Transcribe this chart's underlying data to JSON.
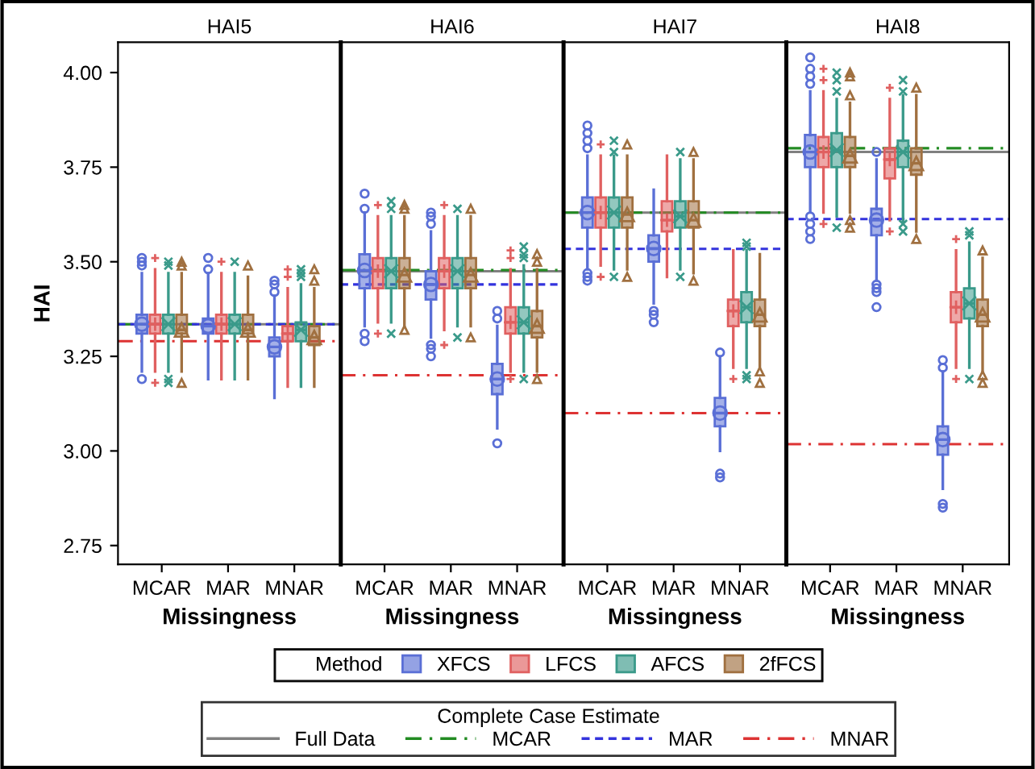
{
  "chart_data": [
    {
      "type": "box",
      "title": "HAI5",
      "xlabel": "Missingness",
      "ylabel": "HAI",
      "categories": [
        "MCAR",
        "MAR",
        "MNAR"
      ],
      "ylim": [
        2.7,
        4.08
      ],
      "yticks": [
        {
          "value": 2.75,
          "label": "2.75"
        },
        {
          "value": 3.0,
          "label": "3.00"
        },
        {
          "value": 3.25,
          "label": "3.25"
        },
        {
          "value": 3.5,
          "label": "3.50"
        },
        {
          "value": 3.75,
          "label": "3.75"
        },
        {
          "value": 4.0,
          "label": "4.00"
        }
      ],
      "legend": "bottom",
      "legend_title": "Method",
      "annotations": [
        "Complete Case Estimate"
      ],
      "ref_lines": [
        {
          "axis": "y",
          "value": 3.335,
          "label": "Full Data",
          "color": "#808080",
          "line_style": "solid"
        },
        {
          "axis": "y",
          "value": 3.335,
          "label": "MCAR",
          "color": "#228b22",
          "line_style": "dashdot"
        },
        {
          "axis": "y",
          "value": 3.335,
          "label": "MAR",
          "color": "#3333dd",
          "line_style": "dashed"
        },
        {
          "axis": "y",
          "value": 3.29,
          "label": "MNAR",
          "color": "#dd3333",
          "line_style": "dashdot"
        }
      ],
      "series": [
        {
          "name": "XFCS",
          "color": "#5a6fd6",
          "marker": "circle",
          "boxes": [
            {
              "low": 3.21,
              "q1": 3.31,
              "median": 3.335,
              "q3": 3.36,
              "high": 3.47,
              "mean": 3.335,
              "outliers": [
                3.19,
                3.49,
                3.5,
                3.51
              ]
            },
            {
              "low": 3.19,
              "q1": 3.31,
              "median": 3.33,
              "q3": 3.35,
              "high": 3.47,
              "mean": 3.33,
              "outliers": [
                3.48,
                3.51
              ]
            },
            {
              "low": 3.14,
              "q1": 3.25,
              "median": 3.275,
              "q3": 3.3,
              "high": 3.41,
              "mean": 3.275,
              "outliers": [
                3.42,
                3.44,
                3.45
              ]
            }
          ]
        },
        {
          "name": "LFCS",
          "color": "#e06060",
          "marker": "plus",
          "boxes": [
            {
              "low": 3.21,
              "q1": 3.31,
              "median": 3.335,
              "q3": 3.36,
              "high": 3.48,
              "mean": 3.335,
              "outliers": [
                3.18,
                3.51
              ]
            },
            {
              "low": 3.19,
              "q1": 3.31,
              "median": 3.335,
              "q3": 3.36,
              "high": 3.47,
              "mean": 3.335,
              "outliers": [
                3.5
              ]
            },
            {
              "low": 3.17,
              "q1": 3.29,
              "median": 3.31,
              "q3": 3.33,
              "high": 3.43,
              "mean": 3.31,
              "outliers": [
                3.46,
                3.48
              ]
            }
          ]
        },
        {
          "name": "AFCS",
          "color": "#3a9a8a",
          "marker": "cross",
          "boxes": [
            {
              "low": 3.21,
              "q1": 3.31,
              "median": 3.335,
              "q3": 3.36,
              "high": 3.47,
              "mean": 3.335,
              "outliers": [
                3.18,
                3.19,
                3.49,
                3.5
              ]
            },
            {
              "low": 3.19,
              "q1": 3.31,
              "median": 3.335,
              "q3": 3.36,
              "high": 3.47,
              "mean": 3.335,
              "outliers": [
                3.5
              ]
            },
            {
              "low": 3.17,
              "q1": 3.29,
              "median": 3.32,
              "q3": 3.34,
              "high": 3.44,
              "mean": 3.32,
              "outliers": [
                3.46,
                3.47,
                3.48
              ]
            }
          ]
        },
        {
          "name": "2fFCS",
          "color": "#a07040",
          "marker": "triangle",
          "boxes": [
            {
              "low": 3.21,
              "q1": 3.31,
              "median": 3.32,
              "q3": 3.36,
              "high": 3.47,
              "mean": 3.32,
              "outliers": [
                3.18,
                3.49,
                3.5
              ]
            },
            {
              "low": 3.19,
              "q1": 3.31,
              "median": 3.32,
              "q3": 3.36,
              "high": 3.46,
              "mean": 3.32,
              "outliers": [
                3.49
              ]
            },
            {
              "low": 3.17,
              "q1": 3.28,
              "median": 3.3,
              "q3": 3.33,
              "high": 3.43,
              "mean": 3.3,
              "outliers": [
                3.45,
                3.48
              ]
            }
          ]
        }
      ]
    },
    {
      "type": "box",
      "title": "HAI6",
      "xlabel": "Missingness",
      "categories": [
        "MCAR",
        "MAR",
        "MNAR"
      ],
      "ylim": [
        2.7,
        4.08
      ],
      "tick_labels": "x",
      "ref_lines": [
        {
          "axis": "y",
          "value": 3.475,
          "color": "#808080",
          "line_style": "solid"
        },
        {
          "axis": "y",
          "value": 3.478,
          "color": "#228b22",
          "line_style": "dashdot"
        },
        {
          "axis": "y",
          "value": 3.44,
          "color": "#3333dd",
          "line_style": "dashed"
        },
        {
          "axis": "y",
          "value": 3.2,
          "color": "#dd3333",
          "line_style": "dashdot"
        }
      ],
      "series": [
        {
          "color": "#5a6fd6",
          "marker": "circle",
          "boxes": [
            {
              "low": 3.33,
              "q1": 3.43,
              "median": 3.477,
              "q3": 3.52,
              "high": 3.63,
              "mean": 3.477,
              "outliers": [
                3.29,
                3.31,
                3.64,
                3.68
              ]
            },
            {
              "low": 3.3,
              "q1": 3.4,
              "median": 3.44,
              "q3": 3.475,
              "high": 3.58,
              "mean": 3.44,
              "outliers": [
                3.25,
                3.27,
                3.28,
                3.6,
                3.62,
                3.63
              ]
            },
            {
              "low": 3.06,
              "q1": 3.15,
              "median": 3.19,
              "q3": 3.23,
              "high": 3.33,
              "mean": 3.19,
              "outliers": [
                3.02,
                3.35,
                3.37
              ]
            }
          ]
        },
        {
          "color": "#e06060",
          "marker": "plus",
          "boxes": [
            {
              "low": 3.34,
              "q1": 3.43,
              "median": 3.475,
              "q3": 3.51,
              "high": 3.62,
              "mean": 3.475,
              "outliers": [
                3.31,
                3.65
              ]
            },
            {
              "low": 3.32,
              "q1": 3.43,
              "median": 3.475,
              "q3": 3.51,
              "high": 3.62,
              "mean": 3.475,
              "outliers": [
                3.28,
                3.65
              ]
            },
            {
              "low": 3.21,
              "q1": 3.31,
              "median": 3.34,
              "q3": 3.38,
              "high": 3.48,
              "mean": 3.34,
              "outliers": [
                3.19,
                3.51,
                3.53
              ]
            }
          ]
        },
        {
          "color": "#3a9a8a",
          "marker": "cross",
          "boxes": [
            {
              "low": 3.34,
              "q1": 3.43,
              "median": 3.475,
              "q3": 3.51,
              "high": 3.62,
              "mean": 3.475,
              "outliers": [
                3.31,
                3.64,
                3.66
              ]
            },
            {
              "low": 3.33,
              "q1": 3.43,
              "median": 3.475,
              "q3": 3.51,
              "high": 3.62,
              "mean": 3.475,
              "outliers": [
                3.3,
                3.64
              ]
            },
            {
              "low": 3.21,
              "q1": 3.31,
              "median": 3.34,
              "q3": 3.38,
              "high": 3.49,
              "mean": 3.34,
              "outliers": [
                3.19,
                3.51,
                3.52,
                3.54
              ]
            }
          ]
        },
        {
          "color": "#a07040",
          "marker": "triangle",
          "boxes": [
            {
              "low": 3.33,
              "q1": 3.43,
              "median": 3.465,
              "q3": 3.51,
              "high": 3.62,
              "mean": 3.465,
              "outliers": [
                3.32,
                3.64,
                3.65
              ]
            },
            {
              "low": 3.33,
              "q1": 3.43,
              "median": 3.465,
              "q3": 3.51,
              "high": 3.62,
              "mean": 3.465,
              "outliers": [
                3.3,
                3.64
              ]
            },
            {
              "low": 3.21,
              "q1": 3.3,
              "median": 3.33,
              "q3": 3.37,
              "high": 3.48,
              "mean": 3.33,
              "outliers": [
                3.19,
                3.5,
                3.52
              ]
            }
          ]
        }
      ]
    },
    {
      "type": "box",
      "title": "HAI7",
      "xlabel": "Missingness",
      "categories": [
        "MCAR",
        "MAR",
        "MNAR"
      ],
      "ylim": [
        2.7,
        4.08
      ],
      "tick_labels": "x",
      "ref_lines": [
        {
          "axis": "y",
          "value": 3.63,
          "color": "#808080",
          "line_style": "solid"
        },
        {
          "axis": "y",
          "value": 3.63,
          "color": "#228b22",
          "line_style": "dashdot"
        },
        {
          "axis": "y",
          "value": 3.534,
          "color": "#3333dd",
          "line_style": "dashed"
        },
        {
          "axis": "y",
          "value": 3.1,
          "color": "#dd3333",
          "line_style": "dashdot"
        }
      ],
      "series": [
        {
          "color": "#5a6fd6",
          "marker": "circle",
          "boxes": [
            {
              "low": 3.48,
              "q1": 3.59,
              "median": 3.63,
              "q3": 3.67,
              "high": 3.78,
              "mean": 3.63,
              "outliers": [
                3.45,
                3.46,
                3.47,
                3.8,
                3.82,
                3.84,
                3.86
              ]
            },
            {
              "low": 3.39,
              "q1": 3.5,
              "median": 3.535,
              "q3": 3.57,
              "high": 3.69,
              "mean": 3.535,
              "outliers": [
                3.34,
                3.36,
                3.37
              ]
            },
            {
              "low": 3.0,
              "q1": 3.065,
              "median": 3.1,
              "q3": 3.14,
              "high": 3.25,
              "mean": 3.1,
              "outliers": [
                2.93,
                2.94,
                3.26
              ]
            }
          ]
        },
        {
          "color": "#e06060",
          "marker": "plus",
          "boxes": [
            {
              "low": 3.49,
              "q1": 3.59,
              "median": 3.63,
              "q3": 3.67,
              "high": 3.78,
              "mean": 3.63,
              "outliers": [
                3.46,
                3.81
              ]
            },
            {
              "low": 3.46,
              "q1": 3.58,
              "median": 3.61,
              "q3": 3.66,
              "high": 3.78,
              "mean": 3.61
            },
            {
              "low": 3.22,
              "q1": 3.33,
              "median": 3.37,
              "q3": 3.4,
              "high": 3.53,
              "mean": 3.37,
              "outliers": [
                3.19
              ]
            }
          ]
        },
        {
          "color": "#3a9a8a",
          "marker": "cross",
          "boxes": [
            {
              "low": 3.48,
              "q1": 3.59,
              "median": 3.63,
              "q3": 3.67,
              "high": 3.78,
              "mean": 3.63,
              "outliers": [
                3.46,
                3.79,
                3.82
              ]
            },
            {
              "low": 3.48,
              "q1": 3.59,
              "median": 3.62,
              "q3": 3.66,
              "high": 3.77,
              "mean": 3.62,
              "outliers": [
                3.46,
                3.79
              ]
            },
            {
              "low": 3.22,
              "q1": 3.34,
              "median": 3.38,
              "q3": 3.42,
              "high": 3.53,
              "mean": 3.38,
              "outliers": [
                3.19,
                3.2,
                3.54,
                3.55
              ]
            }
          ]
        },
        {
          "color": "#a07040",
          "marker": "triangle",
          "boxes": [
            {
              "low": 3.48,
              "q1": 3.59,
              "median": 3.625,
              "q3": 3.67,
              "high": 3.78,
              "mean": 3.625,
              "outliers": [
                3.46,
                3.81
              ]
            },
            {
              "low": 3.47,
              "q1": 3.59,
              "median": 3.61,
              "q3": 3.66,
              "high": 3.77,
              "mean": 3.61,
              "outliers": [
                3.45,
                3.79
              ]
            },
            {
              "low": 3.22,
              "q1": 3.33,
              "median": 3.36,
              "q3": 3.4,
              "high": 3.52,
              "mean": 3.36,
              "outliers": [
                3.18,
                3.21
              ]
            }
          ]
        }
      ]
    },
    {
      "type": "box",
      "title": "HAI8",
      "xlabel": "Missingness",
      "categories": [
        "MCAR",
        "MAR",
        "MNAR"
      ],
      "ylim": [
        2.7,
        4.08
      ],
      "tick_labels": "x",
      "ref_lines": [
        {
          "axis": "y",
          "value": 3.79,
          "color": "#808080",
          "line_style": "solid"
        },
        {
          "axis": "y",
          "value": 3.8,
          "color": "#228b22",
          "line_style": "dashdot"
        },
        {
          "axis": "y",
          "value": 3.613,
          "color": "#3333dd",
          "line_style": "dashed"
        },
        {
          "axis": "y",
          "value": 3.018,
          "color": "#dd3333",
          "line_style": "dashdot"
        }
      ],
      "series": [
        {
          "color": "#5a6fd6",
          "marker": "circle",
          "boxes": [
            {
              "low": 3.63,
              "q1": 3.75,
              "median": 3.79,
              "q3": 3.835,
              "high": 3.95,
              "mean": 3.79,
              "outliers": [
                3.56,
                3.58,
                3.6,
                3.62,
                3.97,
                3.99,
                4.01,
                4.04
              ]
            },
            {
              "low": 3.45,
              "q1": 3.57,
              "median": 3.61,
              "q3": 3.64,
              "high": 3.77,
              "mean": 3.61,
              "outliers": [
                3.38,
                3.42,
                3.43,
                3.44,
                3.79
              ]
            },
            {
              "low": 2.9,
              "q1": 2.99,
              "median": 3.03,
              "q3": 3.065,
              "high": 3.21,
              "mean": 3.03,
              "outliers": [
                2.85,
                2.86,
                3.22,
                3.24
              ]
            }
          ]
        },
        {
          "color": "#e06060",
          "marker": "plus",
          "boxes": [
            {
              "low": 3.63,
              "q1": 3.75,
              "median": 3.79,
              "q3": 3.83,
              "high": 3.95,
              "mean": 3.79,
              "outliers": [
                3.6,
                3.98,
                4.01
              ]
            },
            {
              "low": 3.61,
              "q1": 3.72,
              "median": 3.77,
              "q3": 3.8,
              "high": 3.93,
              "mean": 3.77,
              "outliers": [
                3.58,
                3.96
              ]
            },
            {
              "low": 3.22,
              "q1": 3.34,
              "median": 3.38,
              "q3": 3.42,
              "high": 3.53,
              "mean": 3.38,
              "outliers": [
                3.19,
                3.56
              ]
            }
          ]
        },
        {
          "color": "#3a9a8a",
          "marker": "cross",
          "boxes": [
            {
              "low": 3.62,
              "q1": 3.75,
              "median": 3.795,
              "q3": 3.84,
              "high": 3.93,
              "mean": 3.795,
              "outliers": [
                3.59,
                3.95,
                3.98,
                4.0
              ]
            },
            {
              "low": 3.6,
              "q1": 3.75,
              "median": 3.79,
              "q3": 3.82,
              "high": 3.94,
              "mean": 3.79,
              "outliers": [
                3.58,
                3.6,
                3.95,
                3.98
              ]
            },
            {
              "low": 3.22,
              "q1": 3.35,
              "median": 3.39,
              "q3": 3.43,
              "high": 3.55,
              "mean": 3.39,
              "outliers": [
                3.19,
                3.57,
                3.58
              ]
            }
          ]
        },
        {
          "color": "#a07040",
          "marker": "triangle",
          "boxes": [
            {
              "low": 3.63,
              "q1": 3.75,
              "median": 3.78,
              "q3": 3.83,
              "high": 3.92,
              "mean": 3.78,
              "outliers": [
                3.59,
                3.61,
                3.94,
                3.99,
                4.0
              ]
            },
            {
              "low": 3.58,
              "q1": 3.73,
              "median": 3.76,
              "q3": 3.8,
              "high": 3.94,
              "mean": 3.76,
              "outliers": [
                3.56,
                3.96
              ]
            },
            {
              "low": 3.21,
              "q1": 3.33,
              "median": 3.36,
              "q3": 3.4,
              "high": 3.51,
              "mean": 3.36,
              "outliers": [
                3.18,
                3.2,
                3.53
              ]
            }
          ]
        }
      ]
    }
  ]
}
